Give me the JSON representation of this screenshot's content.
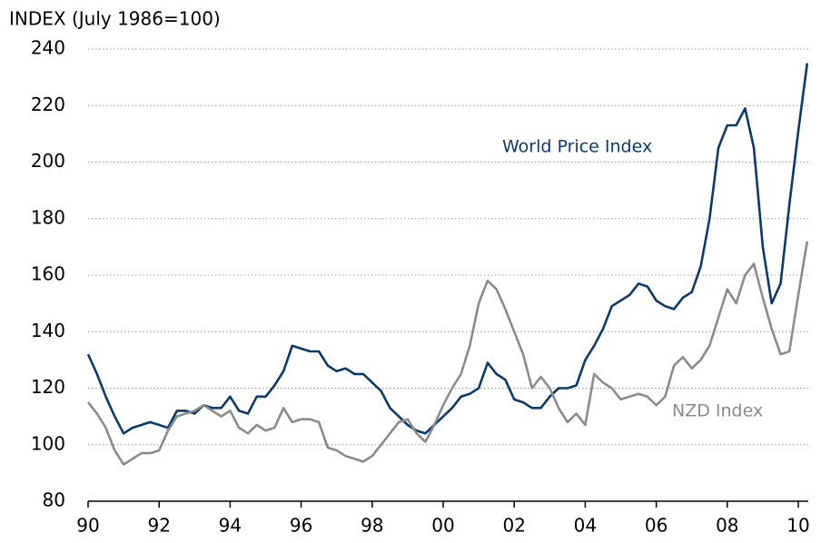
{
  "chart_data": {
    "type": "line",
    "title": "INDEX (July 1986=100)",
    "x": [
      1990,
      1990.25,
      1990.5,
      1990.75,
      1991,
      1991.25,
      1991.5,
      1991.75,
      1992,
      1992.25,
      1992.5,
      1992.75,
      1993,
      1993.25,
      1993.5,
      1993.75,
      1994,
      1994.25,
      1994.5,
      1994.75,
      1995,
      1995.25,
      1995.5,
      1995.75,
      1996,
      1996.25,
      1996.5,
      1996.75,
      1997,
      1997.25,
      1997.5,
      1997.75,
      1998,
      1998.25,
      1998.5,
      1998.75,
      1999,
      1999.25,
      1999.5,
      1999.75,
      2000,
      2000.25,
      2000.5,
      2000.75,
      2001,
      2001.25,
      2001.5,
      2001.75,
      2002,
      2002.25,
      2002.5,
      2002.75,
      2003,
      2003.25,
      2003.5,
      2003.75,
      2004,
      2004.25,
      2004.5,
      2004.75,
      2005,
      2005.25,
      2005.5,
      2005.75,
      2006,
      2006.25,
      2006.5,
      2006.75,
      2007,
      2007.25,
      2007.5,
      2007.75,
      2008,
      2008.25,
      2008.5,
      2008.75,
      2009,
      2009.25,
      2009.5,
      2009.75,
      2010,
      2010.25
    ],
    "series": [
      {
        "name": "World Price Index",
        "color": "#0b3a6b",
        "values": [
          132,
          125,
          117,
          110,
          104,
          106,
          107,
          108,
          107,
          106,
          112,
          112,
          111,
          114,
          113,
          113,
          117,
          112,
          111,
          117,
          117,
          121,
          126,
          135,
          134,
          133,
          133,
          128,
          126,
          127,
          125,
          125,
          122,
          119,
          113,
          110,
          107,
          105,
          104,
          107,
          110,
          113,
          117,
          118,
          120,
          129,
          125,
          123,
          116,
          115,
          113,
          113,
          117,
          120,
          120,
          121,
          130,
          135,
          141,
          149,
          151,
          153,
          157,
          156,
          151,
          149,
          148,
          152,
          154,
          163,
          180,
          205,
          213,
          213,
          219,
          205,
          170,
          150,
          157,
          185,
          211,
          235
        ]
      },
      {
        "name": "NZD Index",
        "color": "#8c8c8c",
        "values": [
          115,
          111,
          106,
          98,
          93,
          95,
          97,
          97,
          98,
          105,
          110,
          111,
          112,
          114,
          112,
          110,
          112,
          106,
          104,
          107,
          105,
          106,
          113,
          108,
          109,
          109,
          108,
          99,
          98,
          96,
          95,
          94,
          96,
          100,
          104,
          108,
          109,
          104,
          101,
          107,
          114,
          120,
          125,
          135,
          150,
          158,
          155,
          148,
          140,
          132,
          120,
          124,
          120,
          113,
          108,
          111,
          107,
          125,
          122,
          120,
          116,
          117,
          118,
          117,
          114,
          117,
          128,
          131,
          127,
          130,
          135,
          145,
          155,
          150,
          160,
          164,
          152,
          141,
          132,
          133,
          153,
          172
        ]
      }
    ],
    "xlim": [
      1990,
      2010.25
    ],
    "ylim": [
      80,
      240
    ],
    "xticks": [
      {
        "value": 1990,
        "label": "90"
      },
      {
        "value": 1992,
        "label": "92"
      },
      {
        "value": 1994,
        "label": "94"
      },
      {
        "value": 1996,
        "label": "96"
      },
      {
        "value": 1998,
        "label": "98"
      },
      {
        "value": 2000,
        "label": "00"
      },
      {
        "value": 2002,
        "label": "02"
      },
      {
        "value": 2004,
        "label": "04"
      },
      {
        "value": 2006,
        "label": "06"
      },
      {
        "value": 2008,
        "label": "08"
      },
      {
        "value": 2010,
        "label": "10"
      }
    ],
    "yticks": [
      80,
      100,
      120,
      140,
      160,
      180,
      200,
      220,
      240
    ],
    "grid": true
  }
}
